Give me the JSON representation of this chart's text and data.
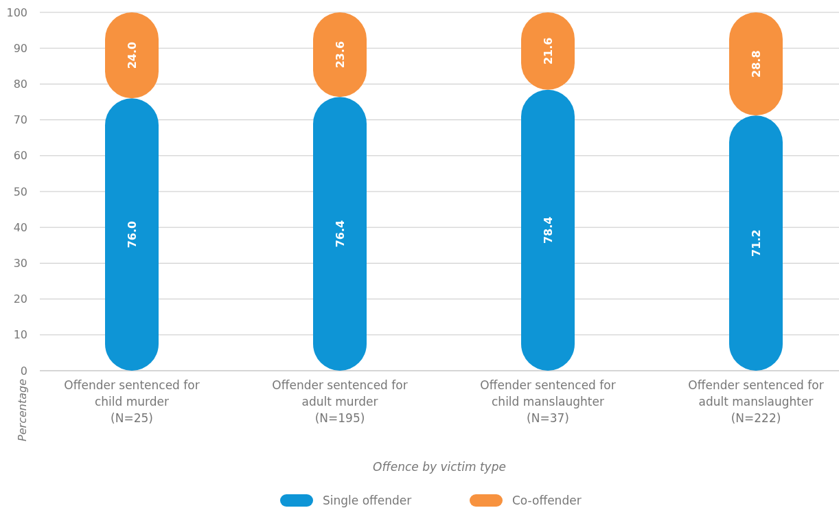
{
  "chart_data": {
    "type": "bar",
    "stacked": true,
    "xlabel": "Offence by victim type",
    "ylabel": "Percentage",
    "categories": [
      "Offender sentenced for\nchild murder\n(N=25)",
      "Offender sentenced for\nadult murder\n(N=195)",
      "Offender sentenced for\nchild manslaughter\n(N=37)",
      "Offender sentenced for\nadult manslaughter\n(N=222)"
    ],
    "series": [
      {
        "name": "Single offender",
        "color": "#0e95d6",
        "values": [
          76.0,
          76.4,
          78.4,
          71.2
        ],
        "value_labels": [
          "76.0",
          "76.4",
          "78.4",
          "71.2"
        ]
      },
      {
        "name": "Co-offender",
        "color": "#f7923f",
        "values": [
          24.0,
          23.6,
          21.6,
          28.8
        ],
        "value_labels": [
          "24.0",
          "23.6",
          "21.6",
          "28.8"
        ]
      }
    ],
    "ylim": [
      0,
      100
    ],
    "yticks": [
      0,
      10,
      20,
      30,
      40,
      50,
      60,
      70,
      80,
      90,
      100
    ],
    "grid": "y",
    "legend": "bottom"
  }
}
